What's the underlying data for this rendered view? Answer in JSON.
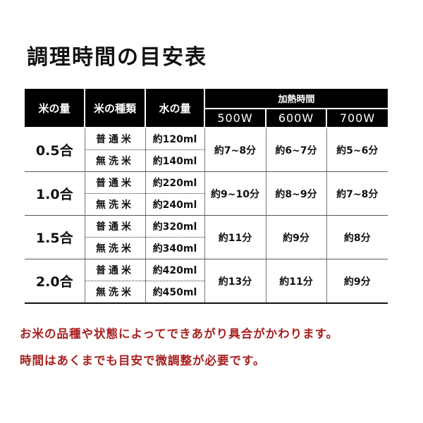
{
  "title": "調理時間の目安表",
  "table": {
    "headers": {
      "rice_amount": "米の量",
      "rice_type": "米の種類",
      "water_amount": "水の量",
      "heating_time": "加熱時間",
      "watts": [
        "500W",
        "600W",
        "700W"
      ]
    },
    "rows": [
      {
        "amount": "0.5合",
        "types": [
          "普通米",
          "無洗米"
        ],
        "water": [
          "約120ml",
          "約140ml"
        ],
        "times": [
          "約7~8分",
          "約6~7分",
          "約5~6分"
        ]
      },
      {
        "amount": "1.0合",
        "types": [
          "普通米",
          "無洗米"
        ],
        "water": [
          "約220ml",
          "約240ml"
        ],
        "times": [
          "約9~10分",
          "約8~9分",
          "約7~8分"
        ]
      },
      {
        "amount": "1.5合",
        "types": [
          "普通米",
          "無洗米"
        ],
        "water": [
          "約320ml",
          "約340ml"
        ],
        "times": [
          "約11分",
          "約9分",
          "約8分"
        ]
      },
      {
        "amount": "2.0合",
        "types": [
          "普通米",
          "無洗米"
        ],
        "water": [
          "約420ml",
          "約450ml"
        ],
        "times": [
          "約13分",
          "約11分",
          "約9分"
        ]
      }
    ]
  },
  "notes": [
    "お米の品種や状態によってできあがり具合がかわります。",
    "時間はあくまでも目安で微調整が必要です。"
  ],
  "colors": {
    "header_bg": "#000000",
    "note": "#a82020"
  }
}
